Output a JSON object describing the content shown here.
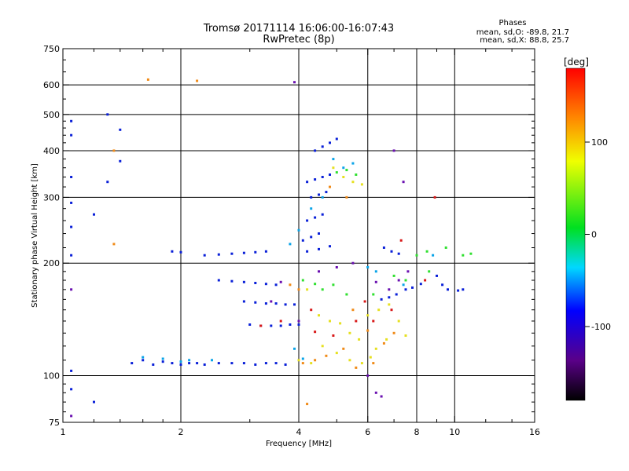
{
  "header": {
    "title_line1": "Tromsø 20171114 16:06:00-16:07:43",
    "title_line2": "RwPretec (8p)",
    "phase_block": {
      "heading": "Phases",
      "line_o": "mean, sd,O: -89.8, 21.7",
      "line_x": "mean, sd,X: 88.8, 25.7"
    }
  },
  "colorbar": {
    "unit_label": "[deg]",
    "ticks": [
      "100",
      "0",
      "-100"
    ],
    "tick_values": [
      100,
      0,
      -100
    ],
    "range": [
      -180,
      180
    ]
  },
  "chart_data": {
    "type": "scatter",
    "title": "Tromsø 20171114 16:06:00-16:07:43",
    "subtitle": "RwPretec (8p)",
    "xlabel": "Frequency [MHz]",
    "ylabel": "Stationary phase Virtual Height [km]",
    "x_scale": "log",
    "y_scale": "log",
    "xlim": [
      1,
      16
    ],
    "ylim": [
      75,
      750
    ],
    "x_ticks": [
      1,
      2,
      4,
      6,
      8,
      10,
      16
    ],
    "x_tick_labels": [
      "1",
      "2",
      "4",
      "6",
      "8",
      "10",
      "16"
    ],
    "x_gridlines": [
      2,
      4,
      6,
      8,
      10
    ],
    "y_ticks": [
      75,
      100,
      200,
      300,
      400,
      500,
      600,
      750
    ],
    "y_tick_labels": [
      "75",
      "100",
      "200",
      "300",
      "400",
      "500",
      "600",
      "750"
    ],
    "y_gridlines": [
      100,
      200,
      300,
      400,
      500,
      600
    ],
    "grid": true,
    "color_scale": "phase in degrees, -180 to 180 (black-purple-blue-cyan-green-yellow-red)",
    "series": [
      {
        "color": "#0a20d8",
        "points": [
          [
            1.5,
            108
          ],
          [
            1.6,
            110
          ],
          [
            1.7,
            107
          ],
          [
            1.8,
            109
          ],
          [
            1.9,
            108
          ],
          [
            2.0,
            107
          ],
          [
            2.1,
            108
          ],
          [
            2.2,
            108
          ],
          [
            2.3,
            107
          ],
          [
            2.5,
            108
          ],
          [
            2.7,
            108
          ],
          [
            2.9,
            108
          ],
          [
            3.1,
            107
          ],
          [
            3.3,
            108
          ],
          [
            3.5,
            108
          ],
          [
            3.7,
            107
          ],
          [
            2.5,
            180
          ],
          [
            2.7,
            179
          ],
          [
            2.9,
            178
          ],
          [
            3.1,
            177
          ],
          [
            3.3,
            176
          ],
          [
            3.5,
            175
          ],
          [
            2.9,
            158
          ],
          [
            3.1,
            157
          ],
          [
            3.3,
            156
          ],
          [
            3.5,
            156
          ],
          [
            3.7,
            155
          ],
          [
            3.9,
            155
          ],
          [
            3.0,
            137
          ],
          [
            3.2,
            136
          ],
          [
            3.4,
            136
          ],
          [
            3.6,
            136
          ],
          [
            3.8,
            137
          ],
          [
            4.0,
            137
          ],
          [
            2.3,
            210
          ],
          [
            2.5,
            211
          ],
          [
            2.7,
            212
          ],
          [
            2.9,
            213
          ],
          [
            3.1,
            214
          ],
          [
            3.3,
            215
          ],
          [
            4.2,
            330
          ],
          [
            4.4,
            335
          ],
          [
            4.6,
            340
          ],
          [
            4.8,
            345
          ],
          [
            4.3,
            300
          ],
          [
            4.5,
            305
          ],
          [
            4.7,
            310
          ],
          [
            4.4,
            400
          ],
          [
            4.6,
            410
          ],
          [
            4.8,
            420
          ],
          [
            5.0,
            430
          ],
          [
            4.2,
            260
          ],
          [
            4.4,
            265
          ],
          [
            4.6,
            270
          ],
          [
            4.1,
            230
          ],
          [
            4.3,
            235
          ],
          [
            4.5,
            240
          ],
          [
            4.2,
            215
          ],
          [
            4.5,
            218
          ],
          [
            4.8,
            222
          ],
          [
            6.5,
            160
          ],
          [
            6.8,
            162
          ],
          [
            7.1,
            165
          ],
          [
            7.5,
            170
          ],
          [
            7.8,
            172
          ],
          [
            8.2,
            176
          ],
          [
            6.6,
            220
          ],
          [
            6.9,
            215
          ],
          [
            7.2,
            212
          ],
          [
            9.0,
            185
          ],
          [
            9.3,
            175
          ],
          [
            9.6,
            170
          ],
          [
            10.2,
            169
          ],
          [
            10.5,
            170
          ],
          [
            1.05,
            340
          ],
          [
            1.05,
            290
          ],
          [
            1.05,
            250
          ],
          [
            1.05,
            210
          ],
          [
            1.05,
            480
          ],
          [
            1.05,
            440
          ],
          [
            1.3,
            500
          ],
          [
            1.4,
            455
          ],
          [
            1.4,
            375
          ],
          [
            1.3,
            330
          ],
          [
            1.2,
            270
          ],
          [
            1.05,
            103
          ],
          [
            1.05,
            92
          ],
          [
            1.2,
            85
          ],
          [
            1.9,
            215
          ],
          [
            2.0,
            214
          ]
        ]
      },
      {
        "color": "#0aa4e8",
        "points": [
          [
            1.6,
            112
          ],
          [
            1.8,
            111
          ],
          [
            2.0,
            109
          ],
          [
            2.4,
            110
          ],
          [
            3.8,
            225
          ],
          [
            4.0,
            245
          ],
          [
            4.3,
            280
          ],
          [
            4.6,
            300
          ],
          [
            5.2,
            360
          ],
          [
            5.5,
            370
          ],
          [
            4.9,
            380
          ],
          [
            6.0,
            195
          ],
          [
            6.3,
            190
          ],
          [
            7.4,
            175
          ],
          [
            8.8,
            210
          ],
          [
            2.1,
            110
          ],
          [
            3.9,
            118
          ],
          [
            4.1,
            111
          ]
        ]
      },
      {
        "color": "#30e030",
        "points": [
          [
            4.6,
            170
          ],
          [
            4.9,
            175
          ],
          [
            5.3,
            165
          ],
          [
            6.2,
            165
          ],
          [
            7.0,
            185
          ],
          [
            7.5,
            180
          ],
          [
            8.0,
            210
          ],
          [
            8.5,
            215
          ],
          [
            9.5,
            220
          ],
          [
            10.5,
            210
          ],
          [
            11,
            212
          ],
          [
            5.0,
            350
          ],
          [
            5.3,
            355
          ],
          [
            5.6,
            345
          ],
          [
            4.1,
            180
          ],
          [
            4.4,
            176
          ],
          [
            8.6,
            190
          ]
        ]
      },
      {
        "color": "#e6e020",
        "points": [
          [
            4.2,
            170
          ],
          [
            4.5,
            145
          ],
          [
            4.8,
            140
          ],
          [
            5.1,
            138
          ],
          [
            5.4,
            130
          ],
          [
            5.7,
            125
          ],
          [
            6.0,
            145
          ],
          [
            6.4,
            150
          ],
          [
            6.8,
            155
          ],
          [
            7.2,
            140
          ],
          [
            7.5,
            128
          ],
          [
            4.9,
            360
          ],
          [
            5.2,
            340
          ],
          [
            5.5,
            330
          ],
          [
            5.8,
            325
          ],
          [
            4.6,
            120
          ],
          [
            5.0,
            115
          ],
          [
            5.4,
            110
          ],
          [
            5.8,
            108
          ],
          [
            6.1,
            112
          ],
          [
            6.3,
            118
          ],
          [
            6.7,
            125
          ],
          [
            4.0,
            110
          ],
          [
            4.3,
            108
          ]
        ]
      },
      {
        "color": "#f08a18",
        "points": [
          [
            4.1,
            108
          ],
          [
            4.4,
            110
          ],
          [
            4.7,
            113
          ],
          [
            5.2,
            118
          ],
          [
            5.6,
            105
          ],
          [
            6.2,
            108
          ],
          [
            6.6,
            122
          ],
          [
            7.0,
            130
          ],
          [
            3.8,
            175
          ],
          [
            4.0,
            170
          ],
          [
            5.5,
            150
          ],
          [
            1.65,
            620
          ],
          [
            2.2,
            615
          ],
          [
            1.35,
            400
          ],
          [
            1.35,
            225
          ],
          [
            4.8,
            320
          ],
          [
            5.3,
            300
          ],
          [
            4.2,
            84
          ],
          [
            6.0,
            132
          ]
        ]
      },
      {
        "color": "#d81818",
        "points": [
          [
            3.2,
            136
          ],
          [
            3.6,
            140
          ],
          [
            4.4,
            131
          ],
          [
            4.9,
            128
          ],
          [
            5.6,
            140
          ],
          [
            6.2,
            140
          ],
          [
            6.9,
            150
          ],
          [
            8.4,
            180
          ],
          [
            8.9,
            300
          ],
          [
            5.9,
            158
          ],
          [
            7.3,
            230
          ],
          [
            4.3,
            150
          ]
        ]
      },
      {
        "color": "#6a10b0",
        "points": [
          [
            3.4,
            158
          ],
          [
            3.6,
            178
          ],
          [
            4.0,
            140
          ],
          [
            4.5,
            190
          ],
          [
            5.0,
            195
          ],
          [
            5.5,
            200
          ],
          [
            6.3,
            178
          ],
          [
            6.8,
            170
          ],
          [
            7.2,
            180
          ],
          [
            7.6,
            190
          ],
          [
            6.0,
            100
          ],
          [
            6.3,
            90
          ],
          [
            6.5,
            88
          ],
          [
            1.05,
            78
          ],
          [
            1.05,
            170
          ],
          [
            3.9,
            610
          ],
          [
            7.0,
            400
          ],
          [
            7.4,
            330
          ]
        ]
      }
    ]
  }
}
